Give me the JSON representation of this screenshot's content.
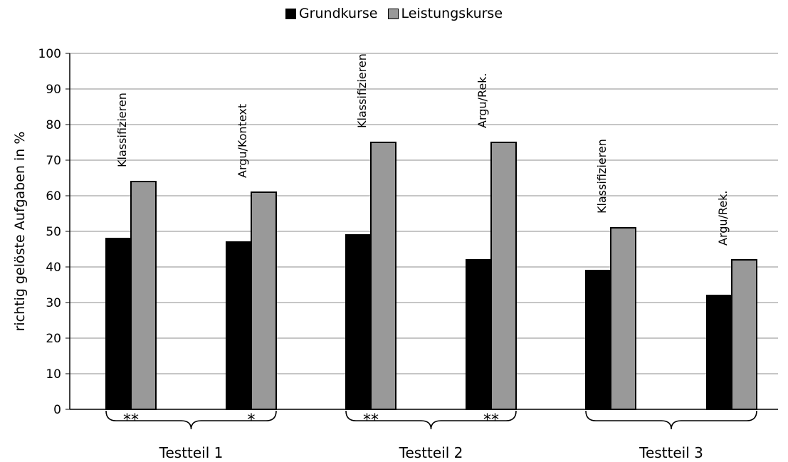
{
  "chart_data": {
    "type": "bar",
    "ylabel": "richtig gelöste Aufgaben in %",
    "ylim": [
      0,
      100
    ],
    "yticks": [
      0,
      10,
      20,
      30,
      40,
      50,
      60,
      70,
      80,
      90,
      100
    ],
    "grid": true,
    "legend_position": "top",
    "categories": [
      "Klassifizieren",
      "Argu/Kontext",
      "Klassifizieren",
      "Argu/Rek.",
      "Klassifizieren",
      "Argu/Rek."
    ],
    "groups": [
      {
        "label": "Testteil 1",
        "categories": [
          0,
          1
        ],
        "significance": [
          "**",
          "*"
        ]
      },
      {
        "label": "Testteil 2",
        "categories": [
          2,
          3
        ],
        "significance": [
          "**",
          "**"
        ]
      },
      {
        "label": "Testteil 3",
        "categories": [
          4,
          5
        ],
        "significance": [
          "",
          ""
        ]
      }
    ],
    "series": [
      {
        "name": "Grundkurse",
        "color": "#000000",
        "values": [
          48,
          47,
          49,
          42,
          39,
          32
        ]
      },
      {
        "name": "Leistungskurse",
        "color": "#999999",
        "values": [
          64,
          61,
          75,
          75,
          51,
          42
        ]
      }
    ]
  }
}
